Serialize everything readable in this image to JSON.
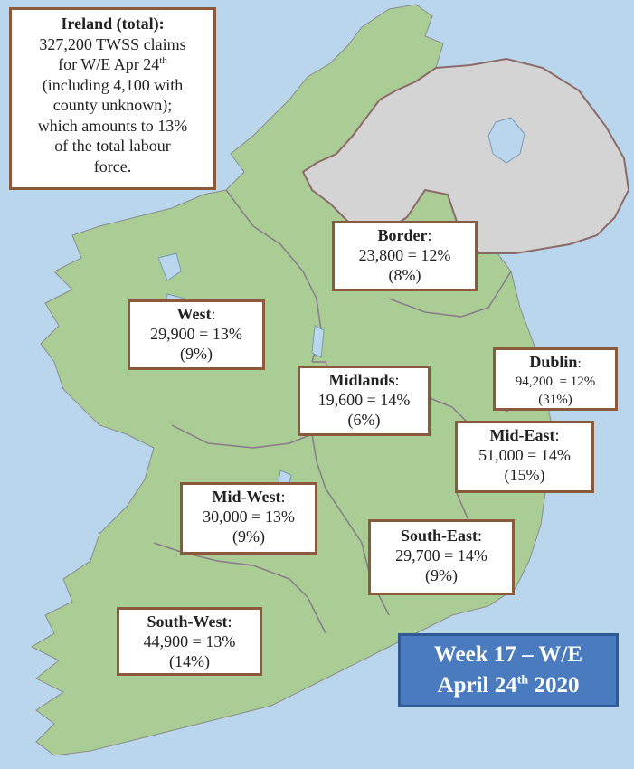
{
  "colors": {
    "sea": "#b9d6ec",
    "land_ireland": "#a9cd95",
    "land_northern_ireland": "#d4d4d4",
    "box_border": "#8b5a3c",
    "week_box": "#4a7bbf"
  },
  "ireland_total": {
    "title": "Ireland (total):",
    "line1": "327,200 TWSS claims",
    "line2_prefix": "for W/E Apr 24",
    "line2_sup": "th",
    "line3": "(including 4,100 with",
    "line4": "county unknown);",
    "line5": "which amounts to 13%",
    "line6": "of the total labour",
    "line7": "force."
  },
  "regions": {
    "border": {
      "name": "Border",
      "suffix": ":",
      "value": "23,800 = 12%",
      "share": "(8%)"
    },
    "west": {
      "name": "West",
      "suffix": ":",
      "value": "29,900 = 13%",
      "share": "(9%)"
    },
    "midlands": {
      "name": "Midlands",
      "suffix": ":",
      "value": "19,600 = 14%",
      "share": "(6%)"
    },
    "dublin": {
      "name": "Dublin",
      "suffix": ":",
      "value": "94,200  = 12%",
      "share": "(31%)"
    },
    "mid_east": {
      "name": "Mid-East",
      "suffix": ":",
      "value": "51,000 = 14%",
      "share": "(15%)"
    },
    "mid_west": {
      "name": "Mid-West",
      "suffix": ":",
      "value": "30,000 = 13%",
      "share": "(9%)"
    },
    "south_east": {
      "name": "South-East",
      "suffix": ":",
      "value": "29,700 = 14%",
      "share": "(9%)"
    },
    "south_west": {
      "name": "South-West",
      "suffix": ":",
      "value": "44,900 = 13%",
      "share": "(14%)"
    }
  },
  "week": {
    "line1": "Week 17 – W/E",
    "line2_prefix": "April 24",
    "line2_sup": "th",
    "line2_suffix": " 2020"
  }
}
